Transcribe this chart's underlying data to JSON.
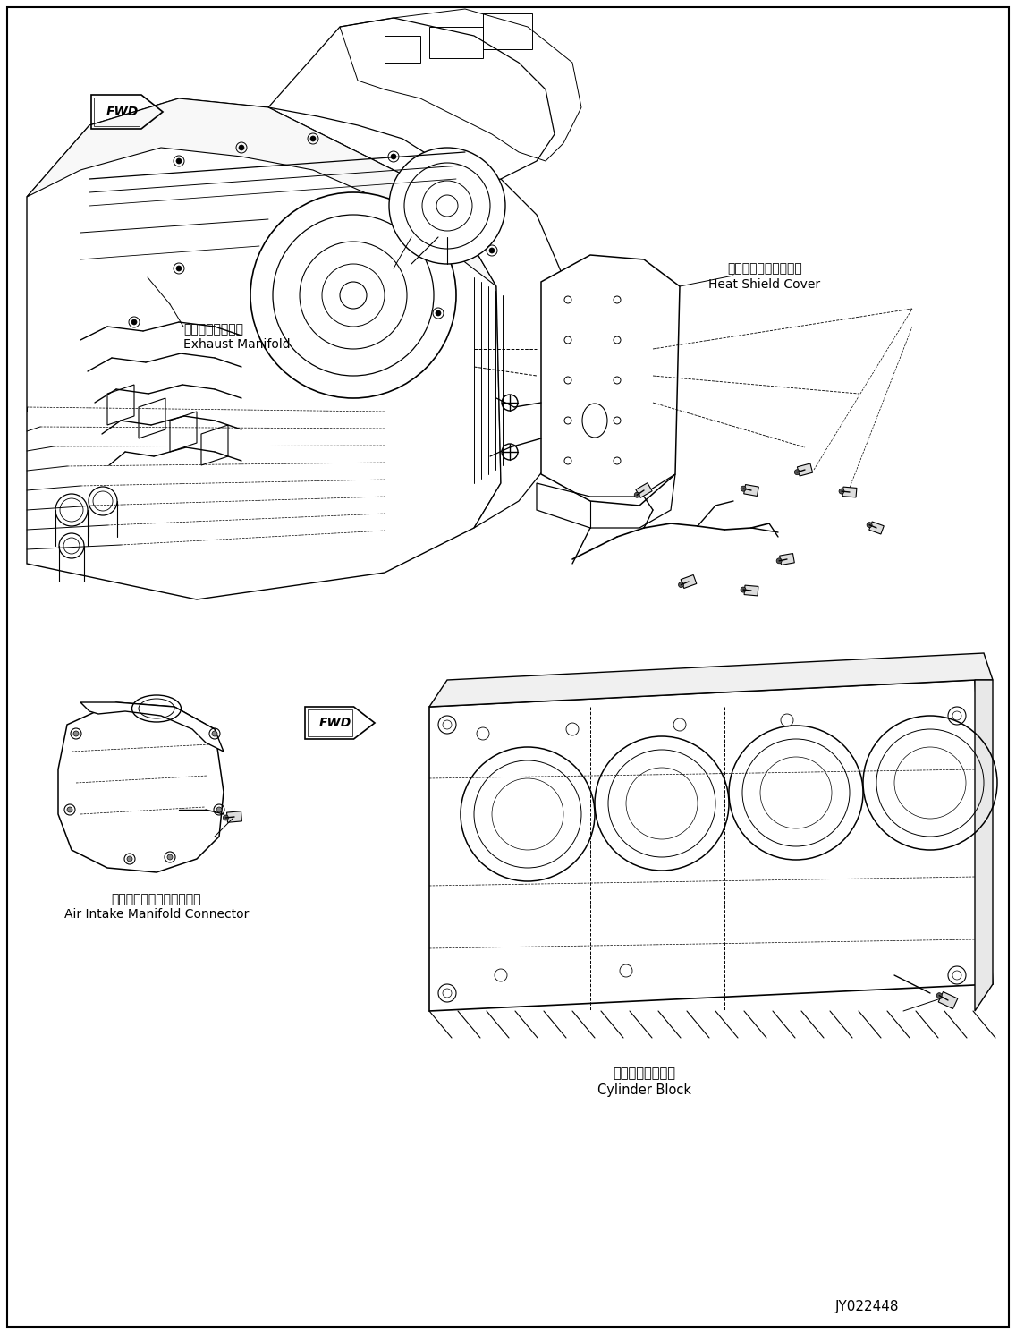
{
  "background_color": "#ffffff",
  "line_color": "#000000",
  "text_color": "#000000",
  "page_id": "JY022448",
  "labels": {
    "exhaust_manifold_jp": "排気マニホールド",
    "exhaust_manifold_en": "Exhaust Manifold",
    "heat_shield_jp": "ヒートシールドカバー",
    "heat_shield_en": "Heat Shield Cover",
    "air_intake_jp": "吸気マニホールドコネクタ",
    "air_intake_en": "Air Intake Manifold Connector",
    "cylinder_block_jp": "シリンダブロック",
    "cylinder_block_en": "Cylinder Block"
  },
  "figsize": [
    11.36,
    14.91
  ],
  "dpi": 100
}
